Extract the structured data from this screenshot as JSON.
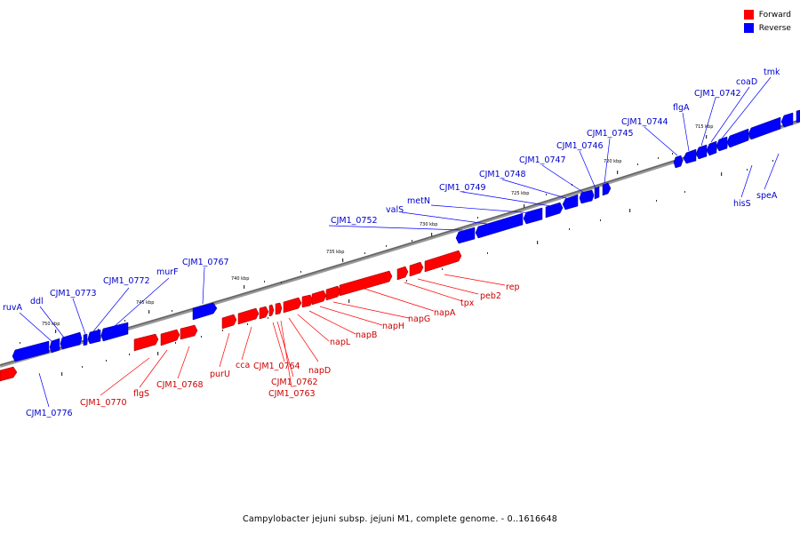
{
  "legend": {
    "forward": {
      "label": "Forward",
      "color": "#ff0000"
    },
    "reverse": {
      "label": "Reverse",
      "color": "#0000ff"
    }
  },
  "caption": "Campylobacter jejuni subsp. jejuni M1, complete genome. - 0..1616648",
  "ticks": [
    "750 kbp",
    "745 kbp",
    "740 kbp",
    "735 kbp",
    "730 kbp",
    "725 kbp",
    "720 kbp",
    "715 kbp"
  ],
  "genes": {
    "reverse": [
      "ruvA",
      "ddl",
      "CJM1_0773",
      "CJM1_0772",
      "murF",
      "CJM1_0767",
      "CJM1_0776",
      "CJM1_0752",
      "valS",
      "metN",
      "CJM1_0749",
      "CJM1_0748",
      "CJM1_0747",
      "CJM1_0746",
      "CJM1_0745",
      "CJM1_0744",
      "flgA",
      "CJM1_0742",
      "coaD",
      "tmk",
      "hisS",
      "speA"
    ],
    "forward": [
      "rep",
      "peb2",
      "tpx",
      "napA",
      "napG",
      "napH",
      "napB",
      "napL",
      "napD",
      "CJM1_0764",
      "CJM1_0762",
      "CJM1_0763",
      "cca",
      "purU",
      "CJM1_0768",
      "flgS",
      "CJM1_0770"
    ]
  }
}
